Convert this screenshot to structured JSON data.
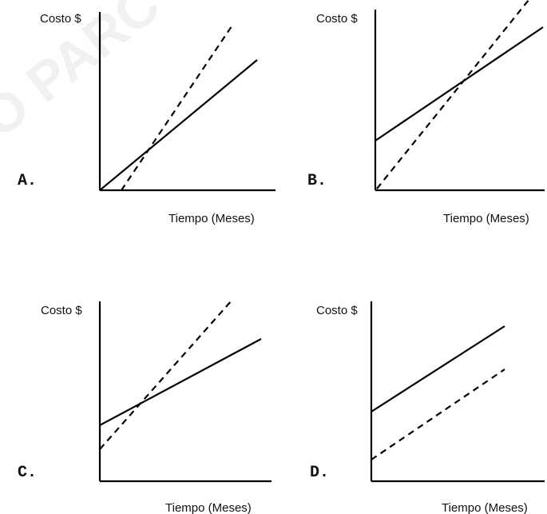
{
  "panels": [
    {
      "letter": "A.",
      "y_label": "Costo $",
      "x_label": "Tiempo (Meses)"
    },
    {
      "letter": "B.",
      "y_label": "Costo $",
      "x_label": "Tiempo (Meses)"
    },
    {
      "letter": "C.",
      "y_label": "Costo $",
      "x_label": "Tiempo (Meses)"
    },
    {
      "letter": "D.",
      "y_label": "Costo $",
      "x_label": "Tiempo (Meses)"
    }
  ],
  "watermark": {
    "text": "O PARC"
  }
}
